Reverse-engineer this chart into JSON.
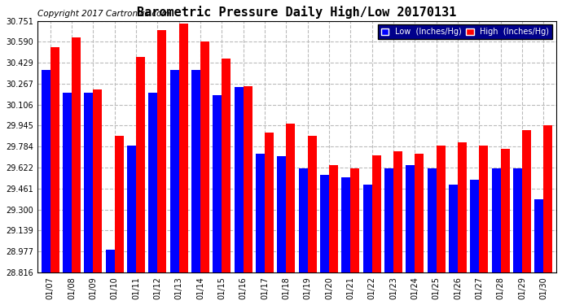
{
  "title": "Barometric Pressure Daily High/Low 20170131",
  "copyright": "Copyright 2017 Cartronics.com",
  "legend_low": "Low  (Inches/Hg)",
  "legend_high": "High  (Inches/Hg)",
  "dates": [
    "01/07",
    "01/08",
    "01/09",
    "01/10",
    "01/11",
    "01/12",
    "01/13",
    "01/14",
    "01/15",
    "01/16",
    "01/17",
    "01/18",
    "01/19",
    "01/20",
    "01/21",
    "01/22",
    "01/23",
    "01/24",
    "01/25",
    "01/26",
    "01/27",
    "01/28",
    "01/29",
    "01/30"
  ],
  "low": [
    30.37,
    30.2,
    30.2,
    28.99,
    29.79,
    30.2,
    30.37,
    30.37,
    30.18,
    30.24,
    29.73,
    29.71,
    29.62,
    29.57,
    29.55,
    29.49,
    29.62,
    29.64,
    29.62,
    29.49,
    29.53,
    29.62,
    29.62,
    29.38
  ],
  "high": [
    30.55,
    30.62,
    30.22,
    29.87,
    30.47,
    30.68,
    30.73,
    30.59,
    30.46,
    30.25,
    29.89,
    29.96,
    29.87,
    29.64,
    29.62,
    29.72,
    29.75,
    29.73,
    29.79,
    29.82,
    29.79,
    29.77,
    29.91,
    29.95
  ],
  "ymin": 28.816,
  "ymax": 30.751,
  "yticks": [
    28.816,
    28.977,
    29.139,
    29.3,
    29.461,
    29.622,
    29.784,
    29.945,
    30.106,
    30.267,
    30.429,
    30.59,
    30.751
  ],
  "bg_color": "#ffffff",
  "low_color": "#0000ff",
  "high_color": "#ff0000",
  "grid_color": "#bbbbbb",
  "title_fontsize": 11,
  "copyright_fontsize": 7.5
}
